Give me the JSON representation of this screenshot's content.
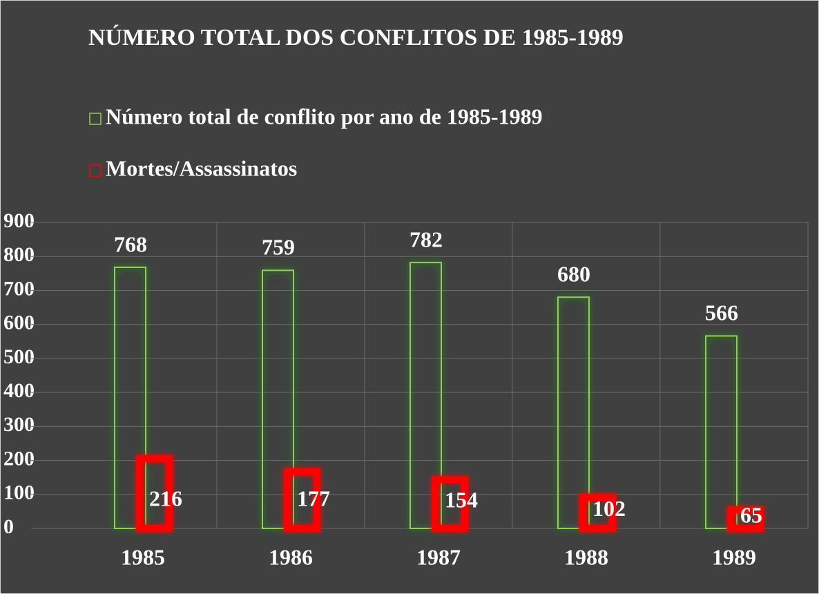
{
  "chart_data": {
    "type": "bar",
    "title": "NÚMERO TOTAL DOS CONFLITOS  DE 1985-1989",
    "categories": [
      "1985",
      "1986",
      "1987",
      "1988",
      "1989"
    ],
    "series": [
      {
        "name": "Número total de conflito por ano de 1985-1989",
        "color": "#92d050",
        "values": [
          768,
          759,
          782,
          680,
          566
        ]
      },
      {
        "name": "Mortes/Assassinatos",
        "color": "#ff0000",
        "values": [
          216,
          177,
          154,
          102,
          65
        ]
      }
    ],
    "ylim": [
      0,
      900
    ],
    "yticks": [
      0,
      100,
      200,
      300,
      400,
      500,
      600,
      700,
      800,
      900
    ],
    "grid": true
  }
}
